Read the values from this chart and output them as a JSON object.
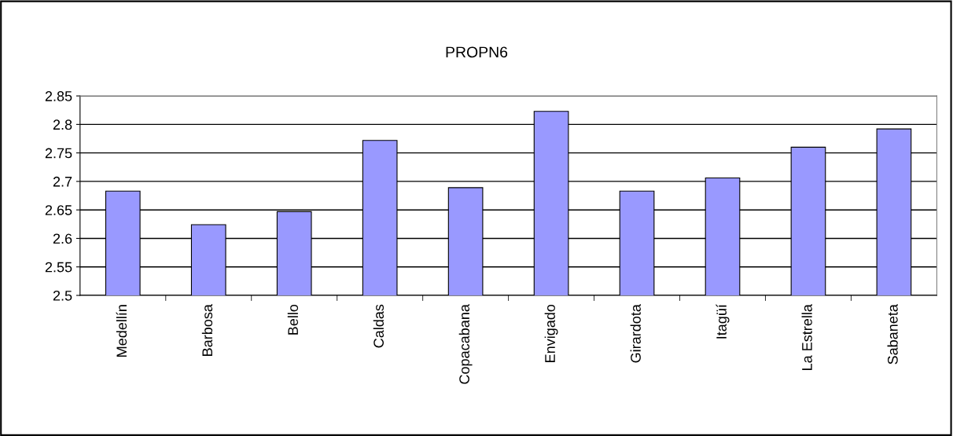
{
  "chart_data": {
    "type": "bar",
    "title": "PROPN6",
    "categories": [
      "Medellín",
      "Barbosa",
      "Bello",
      "Caldas",
      "Copacabana",
      "Envigado",
      "Girardota",
      "Itagüí",
      "La Estrella",
      "Sabaneta"
    ],
    "values": [
      2.683,
      2.624,
      2.647,
      2.772,
      2.689,
      2.823,
      2.683,
      2.706,
      2.76,
      2.792
    ],
    "color": "#9999ff",
    "ylim": [
      2.5,
      2.85
    ],
    "yticks": [
      2.5,
      2.55,
      2.6,
      2.65,
      2.7,
      2.75,
      2.8,
      2.85
    ],
    "grid": "y",
    "legend": false
  }
}
